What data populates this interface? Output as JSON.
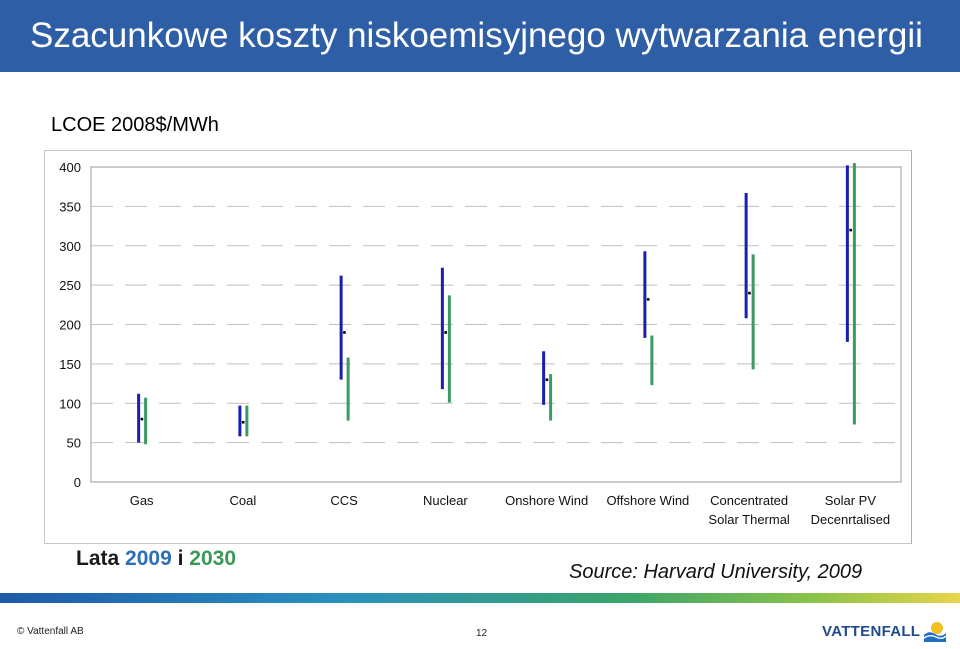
{
  "header": {
    "title": "Szacunkowe koszty niskoemisyjnego wytwarzania energii"
  },
  "chart_label": "LCOE 2008$/MWh",
  "legend_note": {
    "prefix": "Lata",
    "year1": "2009",
    "join": "i",
    "year2": "2030"
  },
  "source": "Source: Harvard University, 2009",
  "footer": {
    "copyright": "© Vattenfall AB",
    "page": "12",
    "logo": "VATTENFALL"
  },
  "colors": {
    "title_bar": "#2e5fa6",
    "series_2009": "#1a1fb0",
    "series_2030": "#3a9a62",
    "gridline": "#c0c0c0"
  },
  "chart_data": {
    "type": "range",
    "ylabel": "LCOE 2008$/MWh",
    "ylim": [
      0,
      400
    ],
    "yticks": [
      0,
      50,
      100,
      150,
      200,
      250,
      300,
      350,
      400
    ],
    "grid": true,
    "categories": [
      [
        "Gas"
      ],
      [
        "Coal"
      ],
      [
        "CCS"
      ],
      [
        "Nuclear"
      ],
      [
        "Onshore Wind"
      ],
      [
        "Offshore Wind"
      ],
      [
        "Concentrated",
        "Solar Thermal"
      ],
      [
        "Solar PV",
        "Decenrtalised"
      ]
    ],
    "series": [
      {
        "name": "2009",
        "ranges": [
          [
            50,
            112
          ],
          [
            58,
            97
          ],
          [
            130,
            262
          ],
          [
            118,
            272
          ],
          [
            98,
            166
          ],
          [
            183,
            293
          ],
          [
            208,
            367
          ],
          [
            178,
            402
          ]
        ],
        "mids": [
          80,
          76,
          190,
          190,
          130,
          232,
          240,
          320
        ]
      },
      {
        "name": "2030",
        "ranges": [
          [
            48,
            107
          ],
          [
            58,
            97
          ],
          [
            78,
            158
          ],
          [
            101,
            237
          ],
          [
            78,
            137
          ],
          [
            123,
            186
          ],
          [
            143,
            289
          ],
          [
            73,
            405
          ]
        ],
        "mids": []
      }
    ]
  }
}
